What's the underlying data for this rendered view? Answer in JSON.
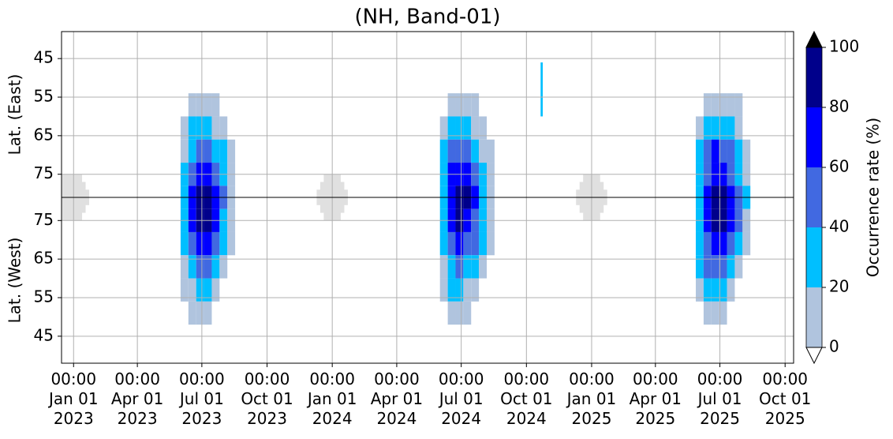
{
  "chart_data": {
    "type": "heatmap",
    "title": "(NH, Band-01)",
    "y_labels": [
      "Lat. (East)",
      "Lat. (West)"
    ],
    "xlim": [
      "2022-12-15",
      "2025-10-13"
    ],
    "xticks": [
      {
        "value": "2023-01-01",
        "label": "00:00\nJan 01\n2023"
      },
      {
        "value": "2023-04-01",
        "label": "00:00\nApr 01\n2023"
      },
      {
        "value": "2023-07-01",
        "label": "00:00\nJul 01\n2023"
      },
      {
        "value": "2023-10-01",
        "label": "00:00\nOct 01\n2023"
      },
      {
        "value": "2024-01-01",
        "label": "00:00\nJan 01\n2024"
      },
      {
        "value": "2024-04-01",
        "label": "00:00\nApr 01\n2024"
      },
      {
        "value": "2024-07-01",
        "label": "00:00\nJul 01\n2024"
      },
      {
        "value": "2024-10-01",
        "label": "00:00\nOct 01\n2024"
      },
      {
        "value": "2025-01-01",
        "label": "00:00\nJan 01\n2025"
      },
      {
        "value": "2025-04-01",
        "label": "00:00\nApr 01\n2025"
      },
      {
        "value": "2025-07-01",
        "label": "00:00\nJul 01\n2025"
      },
      {
        "value": "2025-10-01",
        "label": "00:00\nOct 01\n2025"
      }
    ],
    "ylim": [
      38,
      124
    ],
    "y_inverted": true,
    "yticks": [
      45,
      55,
      65,
      75,
      {
        "value": 87,
        "label": "75"
      },
      {
        "value": 97,
        "label": "65"
      },
      {
        "value": 107,
        "label": "55"
      },
      {
        "value": 117,
        "label": "45"
      }
    ],
    "center_line": 81,
    "grid": true,
    "colorbar": {
      "label": "Occurrence rate (%)",
      "levels": [
        0,
        20,
        40,
        60,
        80,
        100
      ],
      "colors": [
        "#b0c4de",
        "#00bfff",
        "#4169e1",
        "#0000ff",
        "#00008b"
      ],
      "extend_max_color": "#000000",
      "extend_min_color": "#ffffff"
    },
    "mask_color": "#e0e0e0",
    "masked_regions": [
      [
        "2022-12-15",
        "2023-01-23",
        79,
        83
      ],
      [
        "2022-12-15",
        "2023-01-18",
        77,
        85
      ],
      [
        "2022-12-15",
        "2023-01-13",
        75,
        87
      ],
      [
        "2023-12-10",
        "2024-01-23",
        79,
        83
      ],
      [
        "2023-12-15",
        "2024-01-18",
        77,
        85
      ],
      [
        "2023-12-20",
        "2024-01-13",
        75,
        87
      ],
      [
        "2024-12-10",
        "2025-01-23",
        79,
        83
      ],
      [
        "2024-12-15",
        "2025-01-18",
        77,
        85
      ],
      [
        "2024-12-20",
        "2025-01-13",
        75,
        87
      ]
    ],
    "blocks": [
      {
        "x": [
          "2023-06-01",
          "2023-06-12",
          "2023-06-23",
          "2023-07-04",
          "2023-07-15",
          "2023-07-26",
          "2023-08-06",
          "2023-08-17"
        ],
        "y": [
          54,
          60,
          66,
          72,
          78,
          84,
          90,
          96,
          102,
          108,
          114
        ],
        "values": [
          [
            null,
            10,
            15,
            12,
            8,
            null,
            null
          ],
          [
            5,
            20,
            30,
            25,
            15,
            5,
            null
          ],
          [
            15,
            35,
            55,
            50,
            35,
            20,
            5
          ],
          [
            25,
            55,
            75,
            70,
            55,
            35,
            10
          ],
          [
            30,
            65,
            90,
            85,
            65,
            40,
            15
          ],
          [
            30,
            60,
            85,
            80,
            60,
            35,
            10
          ],
          [
            25,
            50,
            70,
            65,
            45,
            25,
            5
          ],
          [
            15,
            35,
            45,
            40,
            25,
            10,
            null
          ],
          [
            5,
            15,
            25,
            20,
            10,
            null,
            null
          ],
          [
            null,
            5,
            10,
            5,
            null,
            null,
            null
          ]
        ]
      },
      {
        "x": [
          "2024-06-01",
          "2024-06-12",
          "2024-06-23",
          "2024-07-04",
          "2024-07-15",
          "2024-07-26",
          "2024-08-06",
          "2024-08-17"
        ],
        "y": [
          54,
          60,
          66,
          72,
          78,
          84,
          90,
          96,
          102,
          108,
          114
        ],
        "values": [
          [
            null,
            8,
            12,
            10,
            5,
            null,
            null
          ],
          [
            10,
            25,
            30,
            25,
            15,
            5,
            null
          ],
          [
            20,
            45,
            55,
            45,
            30,
            15,
            5
          ],
          [
            30,
            60,
            75,
            65,
            50,
            30,
            10
          ],
          [
            35,
            70,
            90,
            85,
            60,
            35,
            10
          ],
          [
            30,
            65,
            85,
            75,
            55,
            30,
            10
          ],
          [
            25,
            55,
            65,
            55,
            40,
            20,
            5
          ],
          [
            15,
            35,
            45,
            35,
            20,
            10,
            null
          ],
          [
            10,
            20,
            25,
            15,
            5,
            null,
            null
          ],
          [
            null,
            10,
            10,
            5,
            null,
            null,
            null
          ]
        ]
      },
      {
        "x": [
          "2025-05-28",
          "2025-06-08",
          "2025-06-19",
          "2025-06-30",
          "2025-07-11",
          "2025-07-22",
          "2025-08-02",
          "2025-08-13"
        ],
        "y": [
          54,
          60,
          66,
          72,
          78,
          84,
          90,
          96,
          102,
          108,
          114
        ],
        "values": [
          [
            null,
            10,
            15,
            12,
            8,
            5,
            null
          ],
          [
            10,
            25,
            35,
            30,
            20,
            10,
            null
          ],
          [
            20,
            40,
            60,
            55,
            40,
            25,
            10
          ],
          [
            30,
            55,
            75,
            70,
            55,
            35,
            15
          ],
          [
            35,
            65,
            85,
            90,
            70,
            45,
            20
          ],
          [
            30,
            60,
            80,
            85,
            65,
            40,
            15
          ],
          [
            25,
            55,
            70,
            65,
            45,
            25,
            10
          ],
          [
            20,
            40,
            50,
            40,
            25,
            10,
            null
          ],
          [
            10,
            20,
            25,
            20,
            10,
            null,
            null
          ],
          [
            null,
            5,
            10,
            5,
            null,
            null,
            null
          ]
        ]
      },
      {
        "x": [
          "2024-10-21",
          "2024-10-24"
        ],
        "y": [
          46,
          60
        ],
        "values": [
          [
            25
          ]
        ]
      }
    ]
  }
}
